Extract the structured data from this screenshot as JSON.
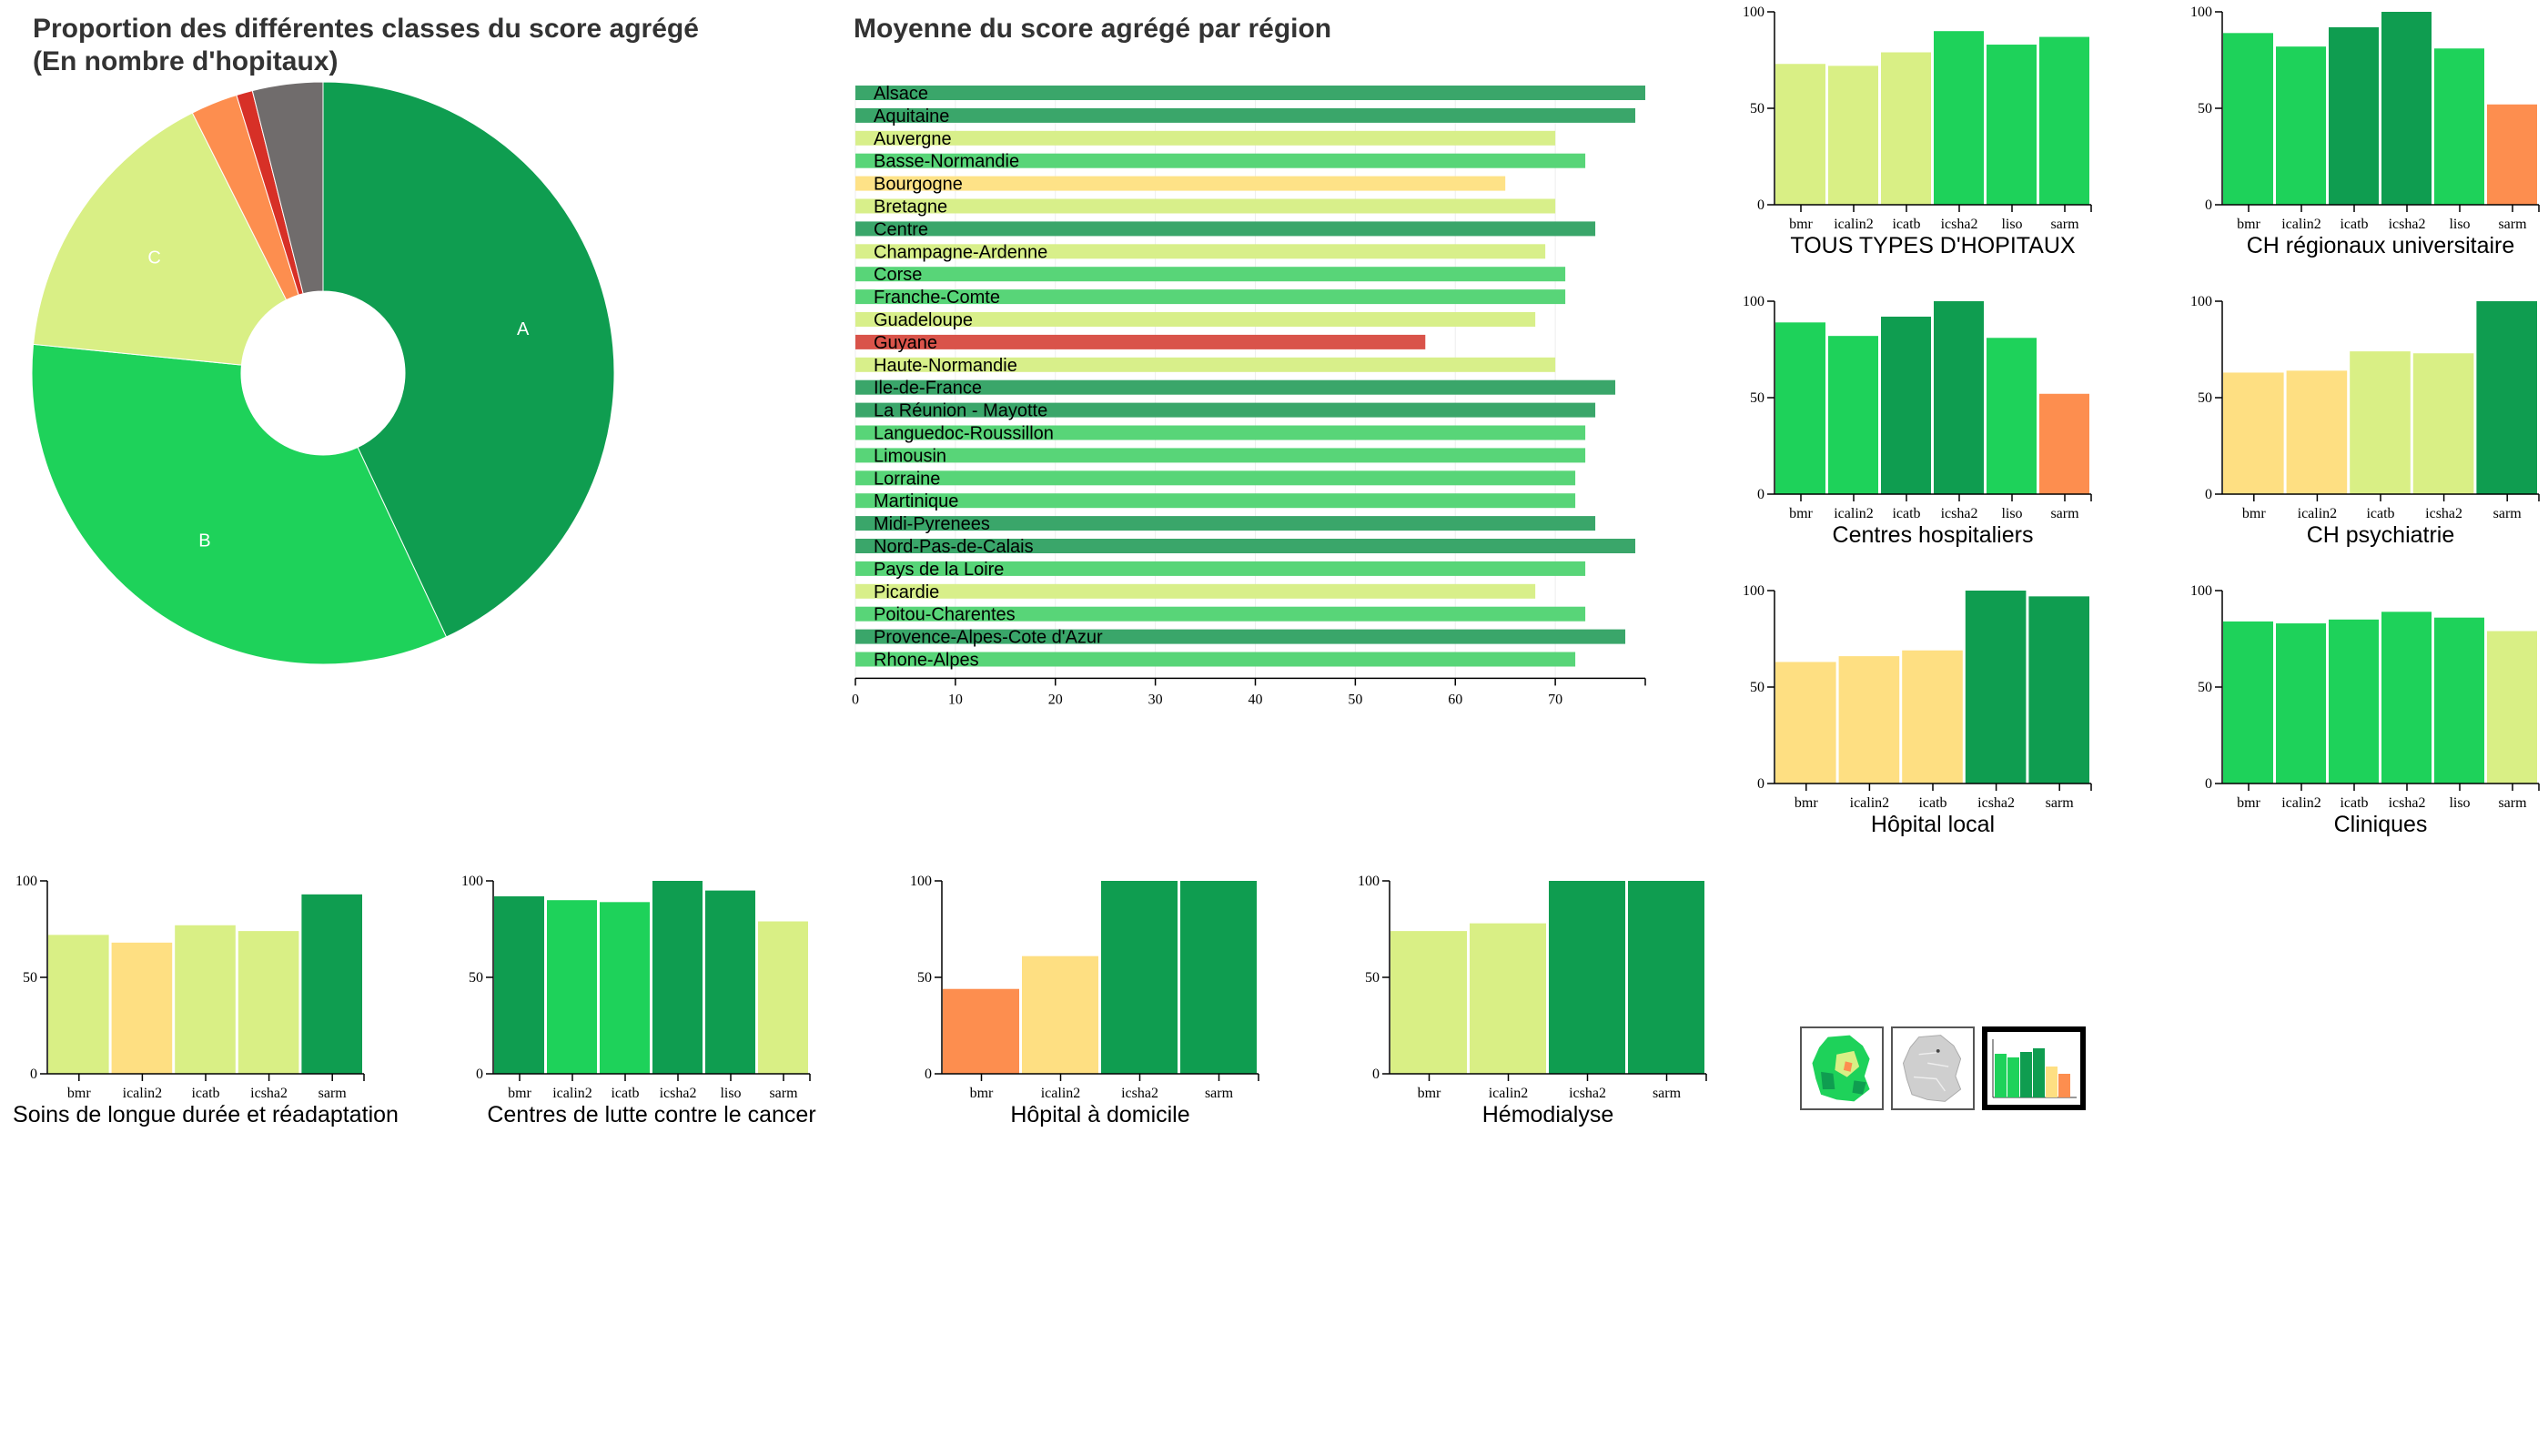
{
  "colors": {
    "A": "#0f9d50",
    "B": "#1ed25a",
    "C": "#d9ef85",
    "D": "#fedf82",
    "E": "#fd8e4f",
    "F": "#d73027",
    "G": "#706c6c",
    "region_pal": "#58d578",
    "region_mid": "#3aa66a",
    "region_light": "#d8ef8a",
    "region_yellow": "#fee287"
  },
  "donut": {
    "title_line1": "Proportion des différentes classes du score agrégé",
    "title_line2": "(En nombre d'hopitaux)"
  },
  "regions": {
    "title": "Moyenne du score agrégé par région"
  },
  "thumbnails": [
    {
      "icon": "france-colored-map-icon",
      "active": false
    },
    {
      "icon": "france-grey-map-icon",
      "active": false
    },
    {
      "icon": "bar-chart-icon",
      "active": true
    }
  ],
  "chart_data": [
    {
      "type": "pie",
      "id": "donut",
      "title": "Proportion des différentes classes du score agrégé (En nombre d'hopitaux)",
      "slices": [
        {
          "label": "A",
          "value": 43.0,
          "color": "#0f9d50",
          "show_label": true
        },
        {
          "label": "B",
          "value": 33.5,
          "color": "#1ed25a",
          "show_label": true
        },
        {
          "label": "C",
          "value": 16.0,
          "color": "#d9ef85",
          "show_label": true
        },
        {
          "label": "",
          "value": 2.6,
          "color": "#fd8e4f",
          "show_label": false
        },
        {
          "label": "",
          "value": 0.9,
          "color": "#d73027",
          "show_label": false
        },
        {
          "label": "",
          "value": 3.9,
          "color": "#706c6c",
          "show_label": false
        }
      ]
    },
    {
      "type": "bar",
      "id": "regions",
      "orientation": "horizontal",
      "title": "Moyenne du score agrégé par région",
      "xlim": [
        0,
        79
      ],
      "xticks": [
        0,
        10,
        20,
        30,
        40,
        50,
        60,
        70
      ],
      "categories": [
        "Alsace",
        "Aquitaine",
        "Auvergne",
        "Basse-Normandie",
        "Bourgogne",
        "Bretagne",
        "Centre",
        "Champagne-Ardenne",
        "Corse",
        "Franche-Comte",
        "Guadeloupe",
        "Guyane",
        "Haute-Normandie",
        "Ile-de-France",
        "La Réunion - Mayotte",
        "Languedoc-Roussillon",
        "Limousin",
        "Lorraine",
        "Martinique",
        "Midi-Pyrenees",
        "Nord-Pas-de-Calais",
        "Pays de la Loire",
        "Picardie",
        "Poitou-Charentes",
        "Provence-Alpes-Cote d'Azur",
        "Rhone-Alpes"
      ],
      "values": [
        79,
        78,
        70,
        73,
        65,
        70,
        74,
        69,
        71,
        71,
        68,
        57,
        70,
        76,
        74,
        73,
        73,
        72,
        72,
        74,
        78,
        73,
        68,
        73,
        77,
        72
      ],
      "colors": [
        "#3aa66a",
        "#3aa66a",
        "#d8ef8a",
        "#58d578",
        "#fee287",
        "#d8ef8a",
        "#3aa66a",
        "#d8ef8a",
        "#58d578",
        "#58d578",
        "#d8ef8a",
        "#d9534a",
        "#d8ef8a",
        "#3aa66a",
        "#3aa66a",
        "#58d578",
        "#58d578",
        "#58d578",
        "#58d578",
        "#3aa66a",
        "#3aa66a",
        "#58d578",
        "#d8ef8a",
        "#58d578",
        "#3aa66a",
        "#58d578"
      ]
    },
    {
      "type": "bar",
      "id": "tous-types",
      "title": "TOUS TYPES D'HOPITAUX",
      "ylim": [
        0,
        100
      ],
      "yticks": [
        0,
        50,
        100
      ],
      "categories": [
        "bmr",
        "icalin2",
        "icatb",
        "icsha2",
        "liso",
        "sarm"
      ],
      "values": [
        73,
        72,
        79,
        90,
        83,
        87
      ],
      "colors": [
        "#d9ef85",
        "#d9ef85",
        "#d9ef85",
        "#1ed25a",
        "#1ed25a",
        "#1ed25a"
      ]
    },
    {
      "type": "bar",
      "id": "ch-regionaux",
      "title": "CH régionaux universitaire",
      "ylim": [
        0,
        100
      ],
      "yticks": [
        0,
        50,
        100
      ],
      "categories": [
        "bmr",
        "icalin2",
        "icatb",
        "icsha2",
        "liso",
        "sarm"
      ],
      "values": [
        89,
        82,
        92,
        100,
        81,
        52
      ],
      "colors": [
        "#1ed25a",
        "#1ed25a",
        "#0f9d50",
        "#0f9d50",
        "#1ed25a",
        "#fd8e4f"
      ]
    },
    {
      "type": "bar",
      "id": "centres-hospitaliers",
      "title": "Centres hospitaliers",
      "ylim": [
        0,
        100
      ],
      "yticks": [
        0,
        50,
        100
      ],
      "categories": [
        "bmr",
        "icalin2",
        "icatb",
        "icsha2",
        "liso",
        "sarm"
      ],
      "values": [
        89,
        82,
        92,
        100,
        81,
        52
      ],
      "colors": [
        "#1ed25a",
        "#1ed25a",
        "#0f9d50",
        "#0f9d50",
        "#1ed25a",
        "#fd8e4f"
      ]
    },
    {
      "type": "bar",
      "id": "ch-psychiatrie",
      "title": "CH psychiatrie",
      "ylim": [
        0,
        100
      ],
      "yticks": [
        0,
        50,
        100
      ],
      "categories": [
        "bmr",
        "icalin2",
        "icatb",
        "icsha2",
        "sarm"
      ],
      "values": [
        63,
        64,
        74,
        73,
        100
      ],
      "colors": [
        "#fedf82",
        "#fedf82",
        "#d9ef85",
        "#d9ef85",
        "#0f9d50"
      ]
    },
    {
      "type": "bar",
      "id": "hopital-local",
      "title": "Hôpital local",
      "ylim": [
        0,
        100
      ],
      "yticks": [
        0,
        50,
        100
      ],
      "categories": [
        "bmr",
        "icalin2",
        "icatb",
        "icsha2",
        "sarm"
      ],
      "values": [
        63,
        66,
        69,
        100,
        97
      ],
      "colors": [
        "#fedf82",
        "#fedf82",
        "#fedf82",
        "#0f9d50",
        "#0f9d50"
      ]
    },
    {
      "type": "bar",
      "id": "cliniques",
      "title": "Cliniques",
      "ylim": [
        0,
        100
      ],
      "yticks": [
        0,
        50,
        100
      ],
      "categories": [
        "bmr",
        "icalin2",
        "icatb",
        "icsha2",
        "liso",
        "sarm"
      ],
      "values": [
        84,
        83,
        85,
        89,
        86,
        79
      ],
      "colors": [
        "#1ed25a",
        "#1ed25a",
        "#1ed25a",
        "#1ed25a",
        "#1ed25a",
        "#d9ef85"
      ]
    },
    {
      "type": "bar",
      "id": "soins-longue-duree",
      "title": "Soins de longue durée et réadaptation",
      "ylim": [
        0,
        100
      ],
      "yticks": [
        0,
        50,
        100
      ],
      "categories": [
        "bmr",
        "icalin2",
        "icatb",
        "icsha2",
        "sarm"
      ],
      "values": [
        72,
        68,
        77,
        74,
        93
      ],
      "colors": [
        "#d9ef85",
        "#fedf82",
        "#d9ef85",
        "#d9ef85",
        "#0f9d50"
      ]
    },
    {
      "type": "bar",
      "id": "lutte-cancer",
      "title": "Centres de lutte contre le cancer",
      "ylim": [
        0,
        100
      ],
      "yticks": [
        0,
        50,
        100
      ],
      "categories": [
        "bmr",
        "icalin2",
        "icatb",
        "icsha2",
        "liso",
        "sarm"
      ],
      "values": [
        92,
        90,
        89,
        100,
        95,
        79
      ],
      "colors": [
        "#0f9d50",
        "#1ed25a",
        "#1ed25a",
        "#0f9d50",
        "#0f9d50",
        "#d9ef85"
      ]
    },
    {
      "type": "bar",
      "id": "hopital-domicile",
      "title": "Hôpital à domicile",
      "ylim": [
        0,
        100
      ],
      "yticks": [
        0,
        50,
        100
      ],
      "categories": [
        "bmr",
        "icalin2",
        "icsha2",
        "sarm"
      ],
      "values": [
        44,
        61,
        100,
        100
      ],
      "colors": [
        "#fd8e4f",
        "#fedf82",
        "#0f9d50",
        "#0f9d50"
      ]
    },
    {
      "type": "bar",
      "id": "hemodialyse",
      "title": "Hémodialyse",
      "ylim": [
        0,
        100
      ],
      "yticks": [
        0,
        50,
        100
      ],
      "categories": [
        "bmr",
        "icalin2",
        "icsha2",
        "sarm"
      ],
      "values": [
        74,
        78,
        100,
        100
      ],
      "colors": [
        "#d9ef85",
        "#d9ef85",
        "#0f9d50",
        "#0f9d50"
      ]
    }
  ]
}
